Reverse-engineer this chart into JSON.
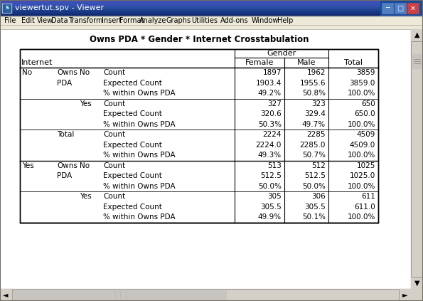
{
  "title": "Owns PDA * Gender * Internet Crosstabulation",
  "window_title": "viewertut.spv - Viewer",
  "menu_items": [
    "File",
    "Edit",
    "View",
    "Data",
    "Transform",
    "Insert",
    "Format",
    "Analyze",
    "Graphs",
    "Utilities",
    "Add-ons",
    "Window",
    "Help"
  ],
  "rows": [
    [
      "No",
      "Owns",
      "No",
      "Count",
      "1897",
      "1962",
      "3859"
    ],
    [
      "",
      "PDA",
      "",
      "Expected Count",
      "1903.4",
      "1955.6",
      "3859.0"
    ],
    [
      "",
      "",
      "",
      "% within Owns PDA",
      "49.2%",
      "50.8%",
      "100.0%"
    ],
    [
      "",
      "",
      "Yes",
      "Count",
      "327",
      "323",
      "650"
    ],
    [
      "",
      "",
      "",
      "Expected Count",
      "320.6",
      "329.4",
      "650.0"
    ],
    [
      "",
      "",
      "",
      "% within Owns PDA",
      "50.3%",
      "49.7%",
      "100.0%"
    ],
    [
      "",
      "Total",
      "",
      "Count",
      "2224",
      "2285",
      "4509"
    ],
    [
      "",
      "",
      "",
      "Expected Count",
      "2224.0",
      "2285.0",
      "4509.0"
    ],
    [
      "",
      "",
      "",
      "% within Owns PDA",
      "49.3%",
      "50.7%",
      "100.0%"
    ],
    [
      "Yes",
      "Owns",
      "No",
      "Count",
      "513",
      "512",
      "1025"
    ],
    [
      "",
      "PDA",
      "",
      "Expected Count",
      "512.5",
      "512.5",
      "1025.0"
    ],
    [
      "",
      "",
      "",
      "% within Owns PDA",
      "50.0%",
      "50.0%",
      "100.0%"
    ],
    [
      "",
      "",
      "Yes",
      "Count",
      "305",
      "306",
      "611"
    ],
    [
      "",
      "",
      "",
      "Expected Count",
      "305.5",
      "305.5",
      "611.0"
    ],
    [
      "",
      "",
      "",
      "% within Owns PDA",
      "49.9%",
      "50.1%",
      "100.0%"
    ]
  ],
  "titlebar_bg": "#d8d8e8",
  "titlebar_gradient": "#1a3a8c",
  "menubar_bg": "#d4d0c8",
  "content_bg": "#ffffff",
  "scrollbar_bg": "#d4d0c8",
  "scrollbar_thumb": "#c0bdb8",
  "fig_bg": "#808080",
  "fig_width": 5.95,
  "fig_height": 4.23
}
